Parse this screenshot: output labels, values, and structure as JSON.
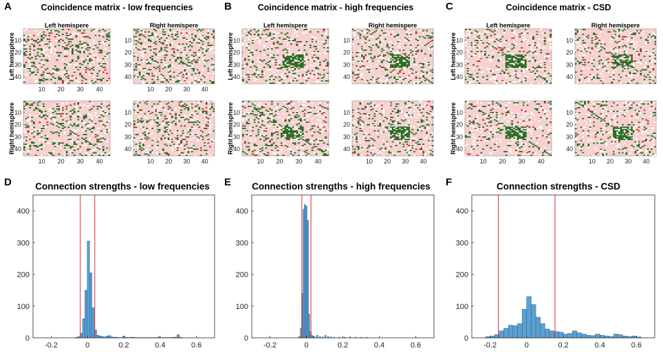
{
  "colors": {
    "pink": "#f7d0d0",
    "white": "#ffffff",
    "green": "#1f6b1f",
    "red": "#d42020",
    "bar": "#5aa0d0",
    "barEdge": "#1f4f80",
    "vline": "#e33b3b"
  },
  "panels": {
    "A": {
      "letter": "A",
      "title": "Coincidence matrix - low frequencies"
    },
    "B": {
      "letter": "B",
      "title": "Coincidence matrix - high frequencies"
    },
    "C": {
      "letter": "C",
      "title": "Coincidence matrix - CSD"
    },
    "D": {
      "letter": "D"
    },
    "E": {
      "letter": "E"
    },
    "F": {
      "letter": "F"
    }
  },
  "matrix_labels": {
    "left_hemisphere": "Left hemispere",
    "right_hemisphere": "Right hemispere",
    "row_left": "Left hemisphere",
    "row_right": "Right hemisphere",
    "ticks": [
      "10",
      "20",
      "30",
      "40"
    ]
  },
  "chart_data": [
    {
      "type": "bar",
      "panel": "D",
      "title": "Connection strengths - low frequencies",
      "xlabel": "",
      "ylabel": "",
      "xlim": [
        -0.3,
        0.7
      ],
      "ylim": [
        0,
        450
      ],
      "xticks": [
        -0.2,
        0,
        0.2,
        0.4,
        0.6
      ],
      "yticks": [
        0,
        100,
        200,
        300,
        400
      ],
      "xtick_labels": [
        "-0.2",
        "0",
        "0.2",
        "0.4",
        "0.6"
      ],
      "ytick_labels": [
        "0",
        "100",
        "200",
        "300",
        "400"
      ],
      "bin_width": 0.013,
      "bin_centers": [
        -0.06,
        -0.047,
        -0.034,
        -0.021,
        -0.008,
        0.005,
        0.018,
        0.031,
        0.044,
        0.057,
        0.07,
        0.083,
        0.096,
        0.109,
        0.122,
        0.135,
        0.148,
        0.161,
        0.174,
        0.187,
        0.2,
        0.213,
        0.226,
        0.239,
        0.252,
        0.265,
        0.278,
        0.291,
        0.304,
        0.317,
        0.33,
        0.343,
        0.356,
        0.369,
        0.382,
        0.395,
        0.408,
        0.421,
        0.434,
        0.447,
        0.46,
        0.473,
        0.486,
        0.499,
        0.512
      ],
      "counts": [
        2,
        4,
        15,
        60,
        150,
        305,
        205,
        95,
        25,
        8,
        6,
        4,
        3,
        6,
        7,
        3,
        2,
        2,
        1,
        1,
        5,
        2,
        1,
        2,
        2,
        1,
        1,
        1,
        1,
        1,
        1,
        1,
        1,
        1,
        1,
        3,
        1,
        1,
        1,
        1,
        1,
        2,
        2,
        10,
        2
      ],
      "vlines": [
        -0.04,
        0.04
      ]
    },
    {
      "type": "bar",
      "panel": "E",
      "title": "Connection strengths - high frequencies",
      "xlabel": "",
      "ylabel": "",
      "xlim": [
        -0.3,
        0.7
      ],
      "ylim": [
        0,
        450
      ],
      "xticks": [
        -0.2,
        0,
        0.2,
        0.4,
        0.6
      ],
      "yticks": [
        0,
        100,
        200,
        300,
        400
      ],
      "xtick_labels": [
        "-0.2",
        "0",
        "0.2",
        "0.4",
        "0.6"
      ],
      "ytick_labels": [
        "0",
        "100",
        "200",
        "300",
        "400"
      ],
      "bin_width": 0.0075,
      "bin_centers": [
        -0.038,
        -0.03,
        -0.023,
        -0.015,
        -0.008,
        0.0,
        0.008,
        0.015,
        0.023,
        0.03,
        0.038,
        0.045,
        0.06,
        0.075,
        0.09,
        0.105,
        0.12,
        0.135,
        0.15,
        0.18,
        0.21,
        0.24,
        0.27,
        0.3,
        0.33
      ],
      "counts": [
        5,
        30,
        140,
        405,
        420,
        415,
        370,
        75,
        20,
        8,
        6,
        4,
        8,
        4,
        3,
        8,
        4,
        3,
        2,
        2,
        2,
        3,
        2,
        2,
        2
      ],
      "vlines": [
        -0.025,
        0.025
      ]
    },
    {
      "type": "bar",
      "panel": "F",
      "title": "Connection strengths - CSD",
      "xlabel": "",
      "ylabel": "",
      "xlim": [
        -0.3,
        0.7
      ],
      "ylim": [
        0,
        450
      ],
      "xticks": [
        -0.2,
        0,
        0.2,
        0.4,
        0.6
      ],
      "yticks": [
        0,
        100,
        200,
        300,
        400
      ],
      "xtick_labels": [
        "-0.2",
        "0",
        "0.2",
        "0.4",
        "0.6"
      ],
      "ytick_labels": [
        "0",
        "100",
        "200",
        "300",
        "400"
      ],
      "bin_width": 0.025,
      "bin_centers": [
        -0.2125,
        -0.1875,
        -0.1625,
        -0.1375,
        -0.1125,
        -0.0875,
        -0.0625,
        -0.0375,
        -0.0125,
        0.0125,
        0.0375,
        0.0625,
        0.0875,
        0.1125,
        0.1375,
        0.1625,
        0.1875,
        0.2125,
        0.2375,
        0.2625,
        0.2875,
        0.3125,
        0.3375,
        0.3625,
        0.3875,
        0.4125,
        0.4375,
        0.4625,
        0.4875,
        0.5125,
        0.5375,
        0.5625,
        0.5875,
        0.6125
      ],
      "counts": [
        4,
        6,
        10,
        22,
        30,
        40,
        38,
        45,
        90,
        130,
        105,
        65,
        45,
        28,
        22,
        20,
        18,
        12,
        14,
        22,
        16,
        12,
        8,
        7,
        12,
        8,
        6,
        4,
        12,
        10,
        6,
        4,
        6,
        3
      ],
      "vlines": [
        -0.155,
        0.155
      ]
    }
  ]
}
